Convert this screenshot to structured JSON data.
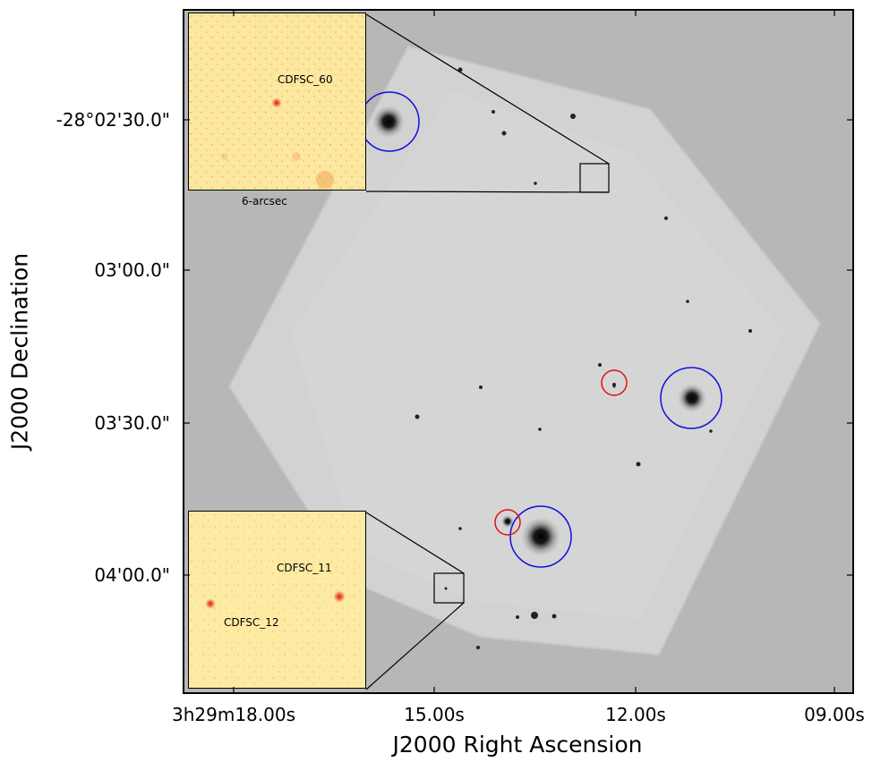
{
  "axes": {
    "xlabel": "J2000 Right Ascension",
    "ylabel": "J2000 Declination",
    "x_ticks": [
      "3h29m18.00s",
      "15.00s",
      "12.00s",
      "09.00s"
    ],
    "y_ticks": [
      "-28°02'30.0\"",
      "03'00.0\"",
      "03'30.0\"",
      "04'00.0\""
    ]
  },
  "insets": {
    "top": {
      "sources": [
        "CDFSC_60"
      ],
      "scale_bar": "6-arcsec"
    },
    "bottom": {
      "sources": [
        "CDFSC_11",
        "CDFSC_12"
      ]
    }
  },
  "markers": {
    "blue_circle_color": "#1010e0",
    "red_circle_color": "#e01010"
  }
}
